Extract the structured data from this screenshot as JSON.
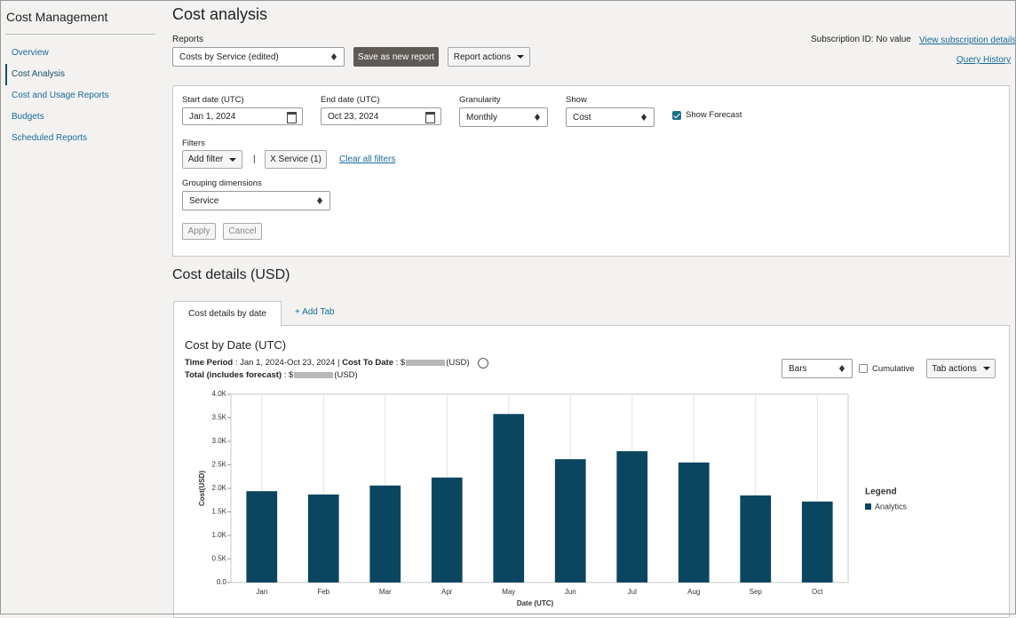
{
  "sidebar": {
    "title": "Cost Management",
    "items": [
      "Overview",
      "Cost Analysis",
      "Cost and Usage Reports",
      "Budgets",
      "Scheduled Reports"
    ]
  },
  "header": {
    "title": "Cost analysis",
    "reports_label": "Reports",
    "report_select": "Costs by Service (edited)",
    "save_button": "Save as new report",
    "actions_button": "Report actions",
    "subscription_id": "Subscription ID: No value",
    "subscription_link": "View subscription details",
    "query_history": "Query History"
  },
  "filters": {
    "start_label": "Start date (UTC)",
    "start_value": "Jan 1, 2024",
    "end_label": "End date (UTC)",
    "end_value": "Oct 23, 2024",
    "granularity_label": "Granularity",
    "granularity_value": "Monthly",
    "show_label": "Show",
    "show_value": "Cost",
    "forecast_label": "Show Forecast",
    "filters_label": "Filters",
    "add_filter": "Add filter",
    "separator": "|",
    "service_chip": "X Service (1)",
    "clear_filters": "Clear all filters",
    "grouping_label": "Grouping dimensions",
    "grouping_value": "Service",
    "apply": "Apply",
    "cancel": "Cancel"
  },
  "details": {
    "title": "Cost details (USD)",
    "tabs": [
      "Cost details by date",
      "+ Add Tab"
    ],
    "time_period_label": "Time Period",
    "time_period_value": ": Jan 1, 2024-Oct 23, 2024 |",
    "cost_to_date_label": "Cost To Date",
    "cost_to_date_prefix": ": $",
    "cost_to_date_suffix": "(USD)",
    "total_label": "Total (includes forecast)",
    "total_prefix": ": $",
    "total_suffix": "(USD)",
    "view_select": "Bars",
    "cumulative": "Cumulative",
    "tab_actions": "Tab actions"
  },
  "chart_data": {
    "type": "bar",
    "title": "Cost by Date (UTC)",
    "x_label": "Date (UTC)",
    "y_label": "Cost(USD)",
    "legend_title": "Legend",
    "categories": [
      "Jan",
      "Feb",
      "Mar",
      "Apr",
      "May",
      "Jun",
      "Jul",
      "Aug",
      "Sep",
      "Oct"
    ],
    "series": [
      {
        "name": "Analytics",
        "color": "#0b4660",
        "values": [
          1940,
          1870,
          2060,
          2230,
          3580,
          2620,
          2790,
          2550,
          1850,
          1720
        ]
      }
    ],
    "ylim": [
      0,
      4000
    ],
    "yticks": [
      {
        "value": 0,
        "label": "0.0"
      },
      {
        "value": 500,
        "label": "0.5K"
      },
      {
        "value": 1000,
        "label": "1.0K"
      },
      {
        "value": 1500,
        "label": "1.5K"
      },
      {
        "value": 2000,
        "label": "2.0K"
      },
      {
        "value": 2500,
        "label": "2.5K"
      },
      {
        "value": 3000,
        "label": "3.0K"
      },
      {
        "value": 3500,
        "label": "3.5K"
      },
      {
        "value": 4000,
        "label": "4.0K"
      }
    ],
    "grid": "x"
  }
}
